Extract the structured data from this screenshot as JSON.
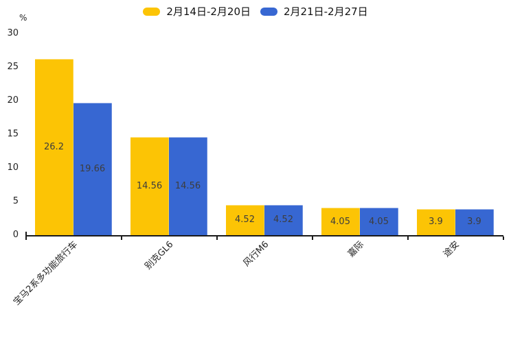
{
  "chart_data": {
    "type": "bar",
    "title": "",
    "xlabel": "",
    "ylabel": "%",
    "categories": [
      "宝马2系多功能旅行车",
      "别克GL6",
      "风行M6",
      "嘉际",
      "途安"
    ],
    "series": [
      {
        "name": "2月14日-2月20日",
        "color": "#FCC405",
        "values": [
          26.2,
          14.56,
          4.52,
          4.05,
          3.9
        ]
      },
      {
        "name": "2月21日-2月27日",
        "color": "#3767D2",
        "values": [
          19.66,
          14.56,
          4.52,
          4.05,
          3.9
        ]
      }
    ],
    "yticks": [
      0,
      5,
      10,
      15,
      20,
      25,
      30
    ],
    "ylim": [
      0,
      30
    ],
    "grid": false,
    "legend_position": "top",
    "bar_labels": true
  },
  "colors": {
    "background": "#ffffff",
    "axis": "#1a1a1a",
    "tick_text": "#222222",
    "bar_value_text": "#3d3d3d",
    "series_yellow": "#FCC405",
    "series_blue": "#3767D2"
  }
}
